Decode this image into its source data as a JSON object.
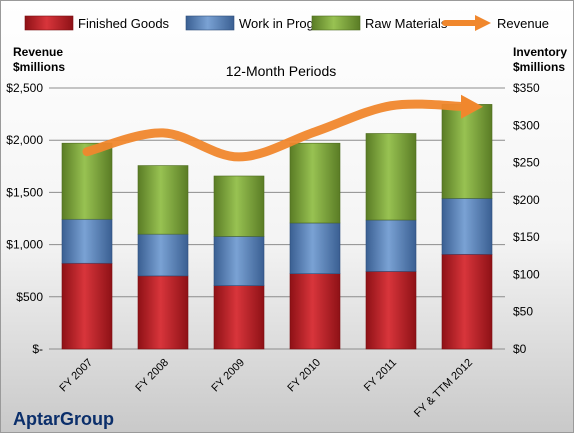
{
  "chart_data": {
    "type": "bar",
    "stacked": true,
    "title": "12-Month Periods",
    "company": "AptarGroup",
    "categories": [
      "FY 2007",
      "FY 2008",
      "FY 2009",
      "FY 2010",
      "FY 2011",
      "FY & TTM 2012"
    ],
    "left_axis": {
      "label_line1": "Revenue",
      "label_line2": "$millions",
      "ylim": [
        0,
        2500
      ],
      "ticks": [
        0,
        500,
        1000,
        1500,
        2000,
        2500
      ],
      "tick_labels": [
        "$-",
        "$500",
        "$1,000",
        "$1,500",
        "$2,000",
        "$2,500"
      ]
    },
    "right_axis": {
      "label_line1": "Inventory",
      "label_line2": "$millions",
      "ylim": [
        0,
        350
      ],
      "ticks": [
        0,
        50,
        100,
        150,
        200,
        250,
        300,
        350
      ],
      "tick_labels": [
        "$0",
        "$50",
        "$100",
        "$150",
        "$200",
        "$250",
        "$300",
        "$350"
      ]
    },
    "series": [
      {
        "name": "Finished Goods",
        "axis": "right",
        "color": "#c0272d",
        "values": [
          115,
          98,
          85,
          101,
          104,
          127
        ]
      },
      {
        "name": "Work in Progress",
        "axis": "right",
        "color": "#4f81bd",
        "values": [
          59,
          56,
          66,
          68,
          69,
          75
        ]
      },
      {
        "name": "Raw Materials",
        "axis": "right",
        "color": "#7ea83b",
        "values": [
          102,
          92,
          81,
          107,
          116,
          126
        ]
      },
      {
        "name": "Revenue",
        "axis": "left",
        "type": "line",
        "color": "#f0872d",
        "values": [
          1890,
          2070,
          1840,
          2080,
          2330,
          2320
        ]
      }
    ],
    "grid": true,
    "legend_position": "top"
  }
}
